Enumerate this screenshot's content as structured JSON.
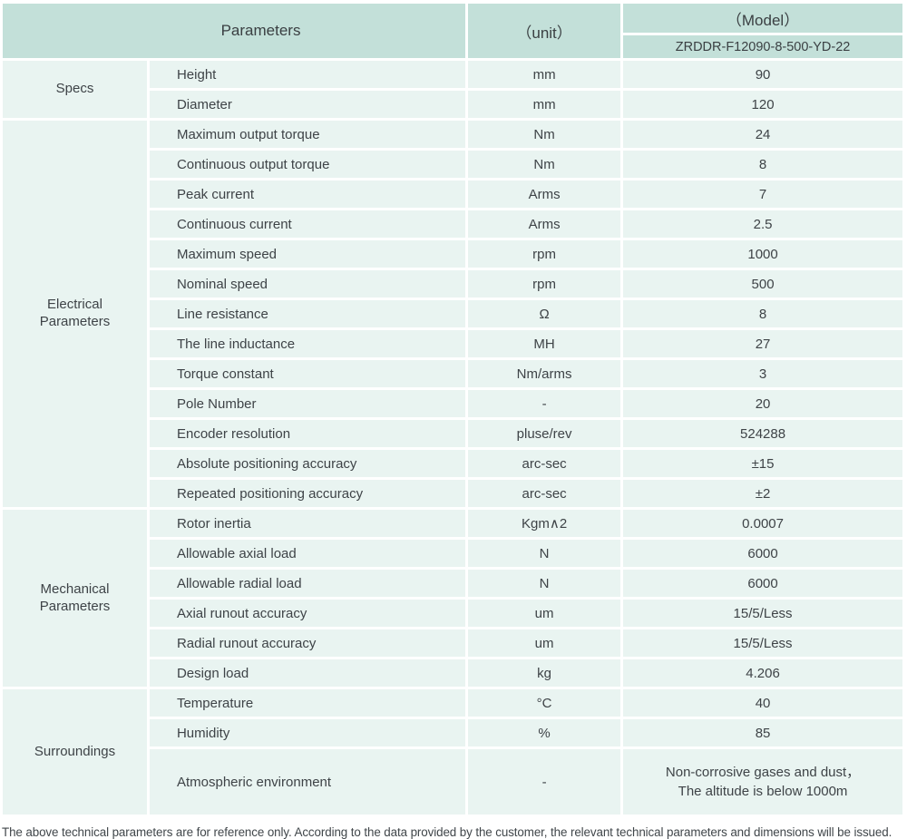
{
  "header": {
    "parameters_label": "Parameters",
    "unit_label": "（unit）",
    "model_label": "（Model）",
    "model_number": "ZRDDR-F12090-8-500-YD-22"
  },
  "colors": {
    "header_teal": "#c3e0d9",
    "row_teal": "#e9f4f1",
    "text": "#3e4347"
  },
  "sections": [
    {
      "name": "Specs",
      "rows": [
        {
          "parameter": "Height",
          "unit": "mm",
          "value": "90"
        },
        {
          "parameter": "Diameter",
          "unit": "mm",
          "value": "120"
        }
      ]
    },
    {
      "name": "Electrical Parameters",
      "rows": [
        {
          "parameter": "Maximum output torque",
          "unit": "Nm",
          "value": "24"
        },
        {
          "parameter": "Continuous output torque",
          "unit": "Nm",
          "value": "8"
        },
        {
          "parameter": "Peak current",
          "unit": "Arms",
          "value": "7"
        },
        {
          "parameter": "Continuous current",
          "unit": "Arms",
          "value": "2.5"
        },
        {
          "parameter": "Maximum speed",
          "unit": "rpm",
          "value": "1000"
        },
        {
          "parameter": "Nominal speed",
          "unit": "rpm",
          "value": "500"
        },
        {
          "parameter": "Line resistance",
          "unit": "Ω",
          "value": "8"
        },
        {
          "parameter": "The line inductance",
          "unit": "MH",
          "value": "27"
        },
        {
          "parameter": "Torque constant",
          "unit": "Nm/arms",
          "value": "3"
        },
        {
          "parameter": "Pole Number",
          "unit": "-",
          "value": "20"
        },
        {
          "parameter": "Encoder resolution",
          "unit": "pluse/rev",
          "value": "524288"
        },
        {
          "parameter": "Absolute positioning accuracy",
          "unit": "arc-sec",
          "value": "±15"
        },
        {
          "parameter": "Repeated positioning accuracy",
          "unit": "arc-sec",
          "value": "±2"
        }
      ]
    },
    {
      "name": "Mechanical Parameters",
      "rows": [
        {
          "parameter": "Rotor inertia",
          "unit": "Kgm∧2",
          "value": "0.0007"
        },
        {
          "parameter": "Allowable axial load",
          "unit": "N",
          "value": "6000"
        },
        {
          "parameter": "Allowable radial load",
          "unit": "N",
          "value": "6000"
        },
        {
          "parameter": "Axial runout accuracy",
          "unit": "um",
          "value": "15/5/Less"
        },
        {
          "parameter": "Radial runout accuracy",
          "unit": "um",
          "value": "15/5/Less"
        },
        {
          "parameter": "Design load",
          "unit": "kg",
          "value": "4.206"
        }
      ]
    },
    {
      "name": "Surroundings",
      "rows": [
        {
          "parameter": "Temperature",
          "unit": "°C",
          "value": "40"
        },
        {
          "parameter": "Humidity",
          "unit": "%",
          "value": "85"
        },
        {
          "parameter": "Atmospheric environment",
          "unit": "-",
          "value": "Non-corrosive gases and dust，\nThe altitude is below 1000m"
        }
      ]
    }
  ],
  "footer_note": "The above technical parameters are for reference only. According to the data provided by the customer, the relevant technical parameters and dimensions will be issued."
}
